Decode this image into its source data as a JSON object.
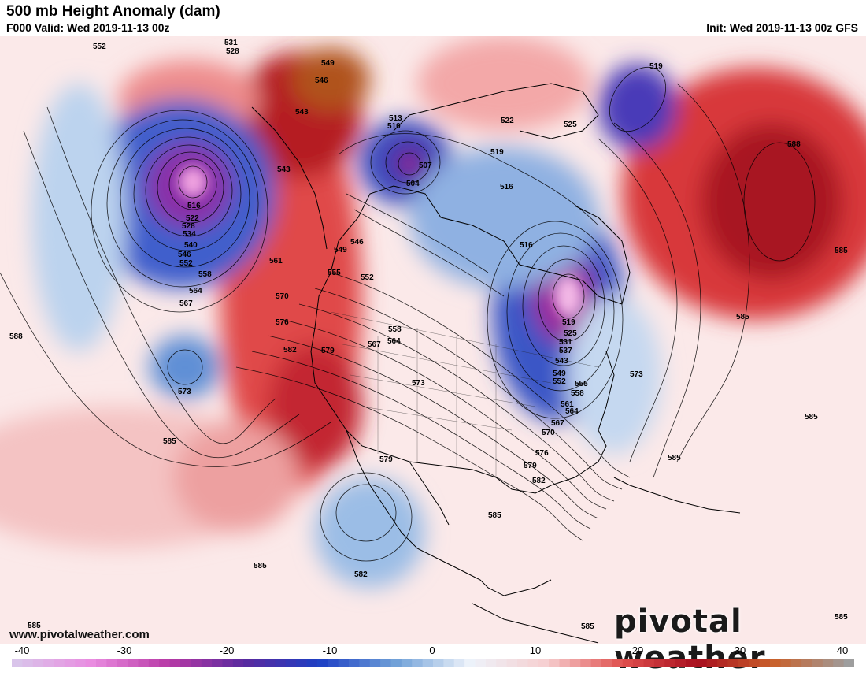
{
  "header": {
    "title": "500 mb Height Anomaly (dam)",
    "valid": "F000 Valid: Wed 2019-11-13 00z",
    "init": "Init: Wed 2019-11-13 00z GFS"
  },
  "footer": {
    "url": "www.pivotalweather.com",
    "brand": "pivotal weather"
  },
  "colorbar": {
    "ticks": [
      "-40",
      "-30",
      "-20",
      "-10",
      "0",
      "10",
      "20",
      "30",
      "40"
    ],
    "stops": [
      "#d9c4ea",
      "#e98be0",
      "#b83aa6",
      "#5a2a9e",
      "#1d3fc4",
      "#6fa0d8",
      "#eef3fa",
      "#f6cfd0",
      "#e0504e",
      "#a80f1f",
      "#c9602a",
      "#9e9e9e"
    ]
  },
  "contour_labels": [
    {
      "text": "552"
    },
    {
      "text": "531"
    },
    {
      "text": "528"
    },
    {
      "text": "549"
    },
    {
      "text": "546"
    },
    {
      "text": "543"
    },
    {
      "text": "513"
    },
    {
      "text": "510"
    },
    {
      "text": "522"
    },
    {
      "text": "525"
    },
    {
      "text": "519"
    },
    {
      "text": "519"
    },
    {
      "text": "507"
    },
    {
      "text": "504"
    },
    {
      "text": "516"
    },
    {
      "text": "588"
    },
    {
      "text": "543"
    },
    {
      "text": "516"
    },
    {
      "text": "522"
    },
    {
      "text": "528"
    },
    {
      "text": "534"
    },
    {
      "text": "540"
    },
    {
      "text": "546"
    },
    {
      "text": "552"
    },
    {
      "text": "558"
    },
    {
      "text": "564"
    },
    {
      "text": "567"
    },
    {
      "text": "561"
    },
    {
      "text": "570"
    },
    {
      "text": "576"
    },
    {
      "text": "582"
    },
    {
      "text": "579"
    },
    {
      "text": "567"
    },
    {
      "text": "564"
    },
    {
      "text": "558"
    },
    {
      "text": "555"
    },
    {
      "text": "552"
    },
    {
      "text": "549"
    },
    {
      "text": "546"
    },
    {
      "text": "573"
    },
    {
      "text": "573"
    },
    {
      "text": "588"
    },
    {
      "text": "516"
    },
    {
      "text": "585"
    },
    {
      "text": "585"
    },
    {
      "text": "519"
    },
    {
      "text": "525"
    },
    {
      "text": "531"
    },
    {
      "text": "537"
    },
    {
      "text": "543"
    },
    {
      "text": "549"
    },
    {
      "text": "552"
    },
    {
      "text": "555"
    },
    {
      "text": "558"
    },
    {
      "text": "561"
    },
    {
      "text": "564"
    },
    {
      "text": "567"
    },
    {
      "text": "570"
    },
    {
      "text": "573"
    },
    {
      "text": "576"
    },
    {
      "text": "579"
    },
    {
      "text": "582"
    },
    {
      "text": "585"
    },
    {
      "text": "579"
    },
    {
      "text": "585"
    },
    {
      "text": "585"
    },
    {
      "text": "582"
    },
    {
      "text": "585"
    },
    {
      "text": "585"
    },
    {
      "text": "585"
    },
    {
      "text": "585"
    },
    {
      "text": "585"
    }
  ]
}
